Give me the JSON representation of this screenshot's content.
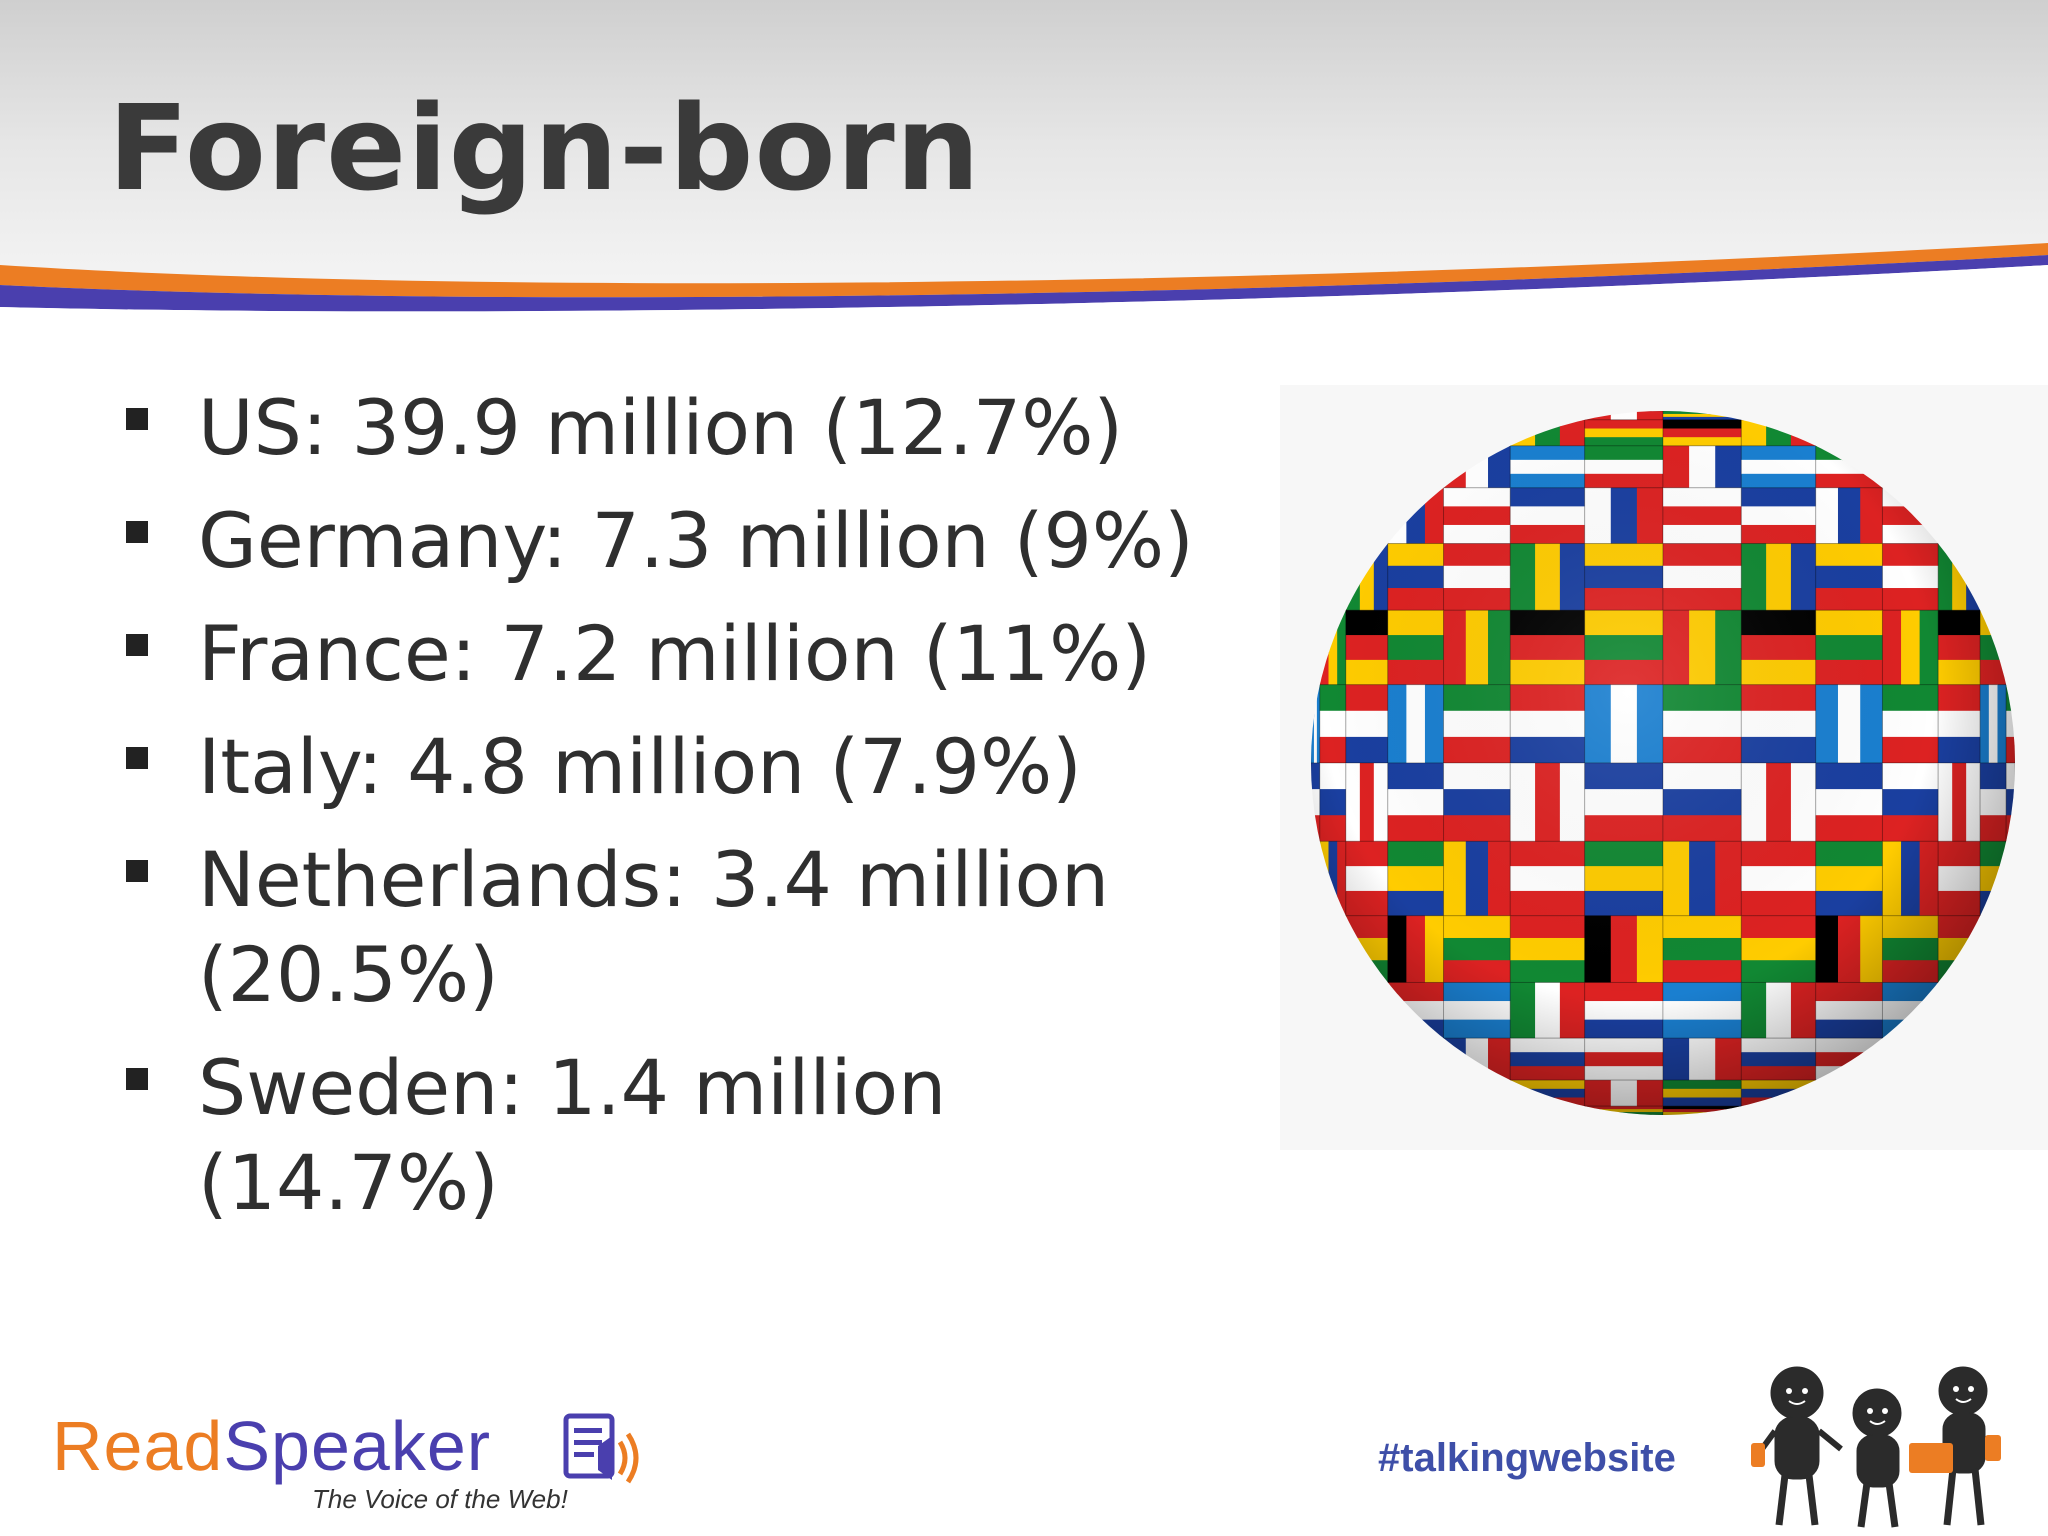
{
  "slide": {
    "title": "Foreign-born",
    "bullets": [
      {
        "text": "US: 39.9 million (12.7%)"
      },
      {
        "text": "Germany: 7.3 million (9%)"
      },
      {
        "text": "France: 7.2 million (11%)"
      },
      {
        "text": "Italy: 4.8 million (7.9%)"
      },
      {
        "text": "Netherlands: 3.4 million (20.5%)"
      },
      {
        "text": "Sweden: 1.4 million (14.7%)"
      }
    ]
  },
  "images": {
    "globe": "flag-globe-illustration",
    "figures": "three-stick-figures-illustration"
  },
  "footer": {
    "logo_read": "Read",
    "logo_speaker": "Speaker",
    "logo_tagline": "The Voice of the Web!",
    "hashtag": "#talkingwebsite"
  },
  "colors": {
    "accent_orange": "#ec7d23",
    "accent_blue": "#4a3fae",
    "title": "#3a3a3a",
    "body_text": "#2f2f2f",
    "hashtag": "#3e4fa8"
  }
}
